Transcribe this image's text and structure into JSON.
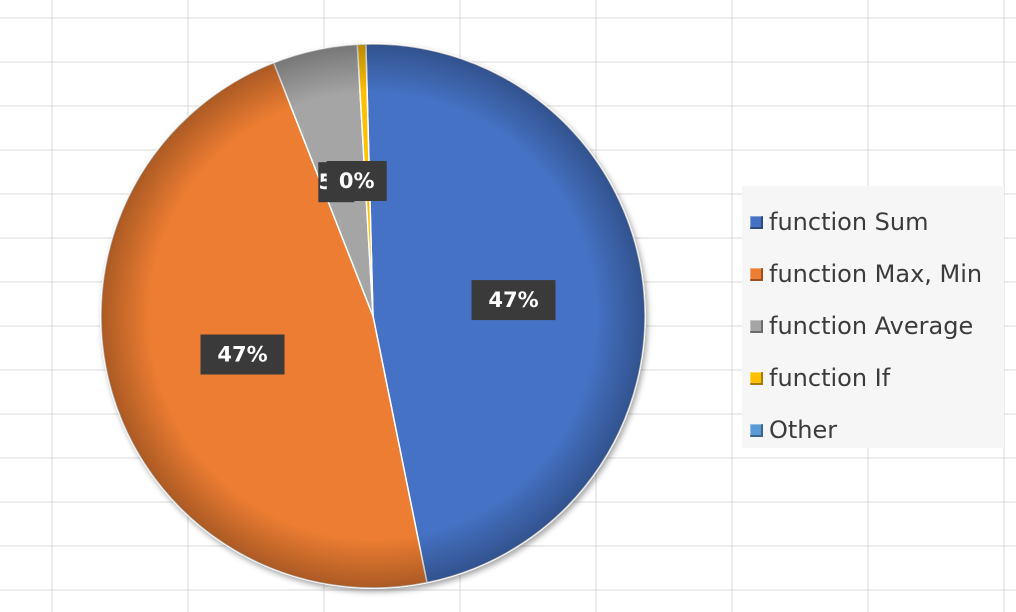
{
  "chart_data": {
    "type": "pie",
    "categories": [
      "function Sum",
      "function Max, Min",
      "function Average",
      "function If",
      "Other"
    ],
    "values": [
      47,
      47,
      5,
      0.5,
      0
    ],
    "data_labels": [
      "47%",
      "47%",
      "5%",
      "0%",
      ""
    ],
    "title": "",
    "legend": "right",
    "colors": [
      "#4472c4",
      "#ed7d31",
      "#a5a5a5",
      "#ffc000",
      "#5b9bd5"
    ]
  },
  "legend": {
    "items": [
      {
        "label": "function Sum",
        "color": "#4472c4"
      },
      {
        "label": "function Max, Min",
        "color": "#ed7d31"
      },
      {
        "label": "function Average",
        "color": "#a5a5a5"
      },
      {
        "label": "function If",
        "color": "#ffc000"
      },
      {
        "label": "Other",
        "color": "#5b9bd5"
      }
    ]
  }
}
